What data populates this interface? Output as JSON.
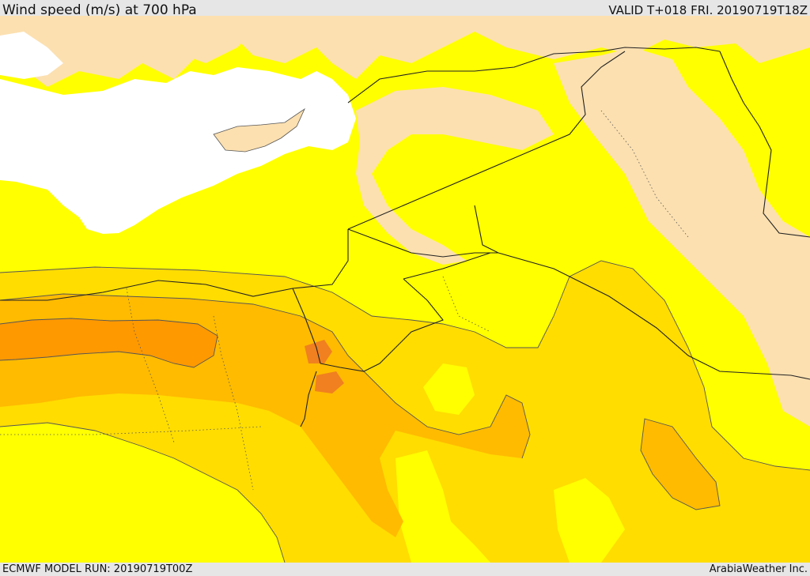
{
  "header": {
    "title": "Wind speed (m/s) at 700 hPa",
    "valid": "VALID T+018 FRI. 20190719T18Z"
  },
  "footer": {
    "model_run": "ECMWF MODEL RUN: 20190719T00Z",
    "credit": "ArabiaWeather Inc."
  },
  "colors": {
    "sea": "#ffffff",
    "band_lt2": "#fce0b0",
    "band_2_6": "#ffff00",
    "band_6_10": "#ffdd00",
    "band_10_14": "#ffbb00",
    "band_14_18": "#ff9900",
    "band_gt18": "#f08020",
    "border": "#222222",
    "contour": "#555555"
  }
}
